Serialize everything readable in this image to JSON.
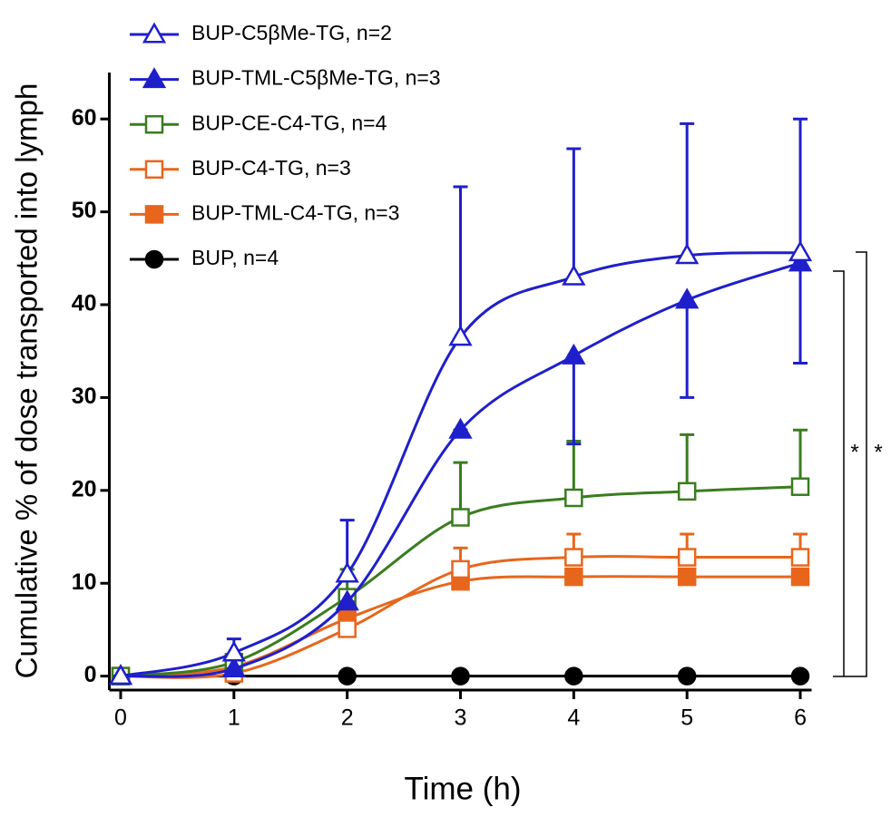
{
  "chart_data": {
    "type": "line",
    "x_label": "Time (h)",
    "y_label": "Cumulative % of dose transported into lymph",
    "x": [
      0,
      1,
      2,
      3,
      4,
      5,
      6
    ],
    "xlim": [
      -0.1,
      6.1
    ],
    "xticks": [
      0,
      1,
      2,
      3,
      4,
      5,
      6
    ],
    "ylim": [
      -1.5,
      65
    ],
    "yticks": [
      0,
      10,
      20,
      30,
      40,
      50,
      60
    ],
    "series": [
      {
        "name": "BUP-C5βMe-TG, n=2",
        "color": "#1f1fcc",
        "marker": "triangle-open",
        "error_direction": "up",
        "values": [
          0,
          2.5,
          11,
          36.5,
          43,
          45.3,
          45.6
        ],
        "errors": [
          0,
          1.5,
          5.8,
          16.2,
          13.8,
          14.2,
          14.4
        ]
      },
      {
        "name": "BUP-TML-C5βMe-TG, n=3",
        "color": "#1f1fcc",
        "marker": "triangle-filled",
        "error_direction": "down",
        "values": [
          0,
          0.8,
          8,
          26.5,
          34.5,
          40.5,
          44.5
        ],
        "errors": [
          0,
          0,
          0,
          0,
          9.5,
          10.5,
          10.8
        ]
      },
      {
        "name": "BUP-CE-C4-TG, n=4",
        "color": "#3a7d1e",
        "marker": "square-open",
        "error_direction": "up",
        "values": [
          0,
          1.5,
          8.5,
          17.1,
          19.2,
          19.9,
          20.4
        ],
        "errors": [
          0,
          0,
          3,
          5.9,
          6.1,
          6.1,
          6.1
        ]
      },
      {
        "name": "BUP-C4-TG, n=3",
        "color": "#e8661c",
        "marker": "square-open",
        "error_direction": "up",
        "values": [
          0,
          0.3,
          5.1,
          11.5,
          12.8,
          12.8,
          12.8
        ],
        "errors": [
          0,
          0,
          0,
          2.3,
          2.5,
          2.5,
          2.5
        ]
      },
      {
        "name": "BUP-TML-C4-TG, n=3",
        "color": "#e8661c",
        "marker": "square-filled",
        "error_direction": "up",
        "values": [
          0,
          1,
          6.2,
          10.2,
          10.7,
          10.7,
          10.7
        ],
        "errors": [
          0,
          0,
          0,
          0,
          0,
          0,
          0
        ]
      },
      {
        "name": "BUP, n=4",
        "color": "#000000",
        "marker": "circle-filled",
        "error_direction": "up",
        "values": [
          0,
          0,
          0,
          0,
          0,
          0,
          0
        ],
        "errors": [
          0,
          0,
          0,
          0,
          0,
          0,
          0
        ]
      }
    ],
    "annotations": [
      "*",
      "*"
    ]
  }
}
